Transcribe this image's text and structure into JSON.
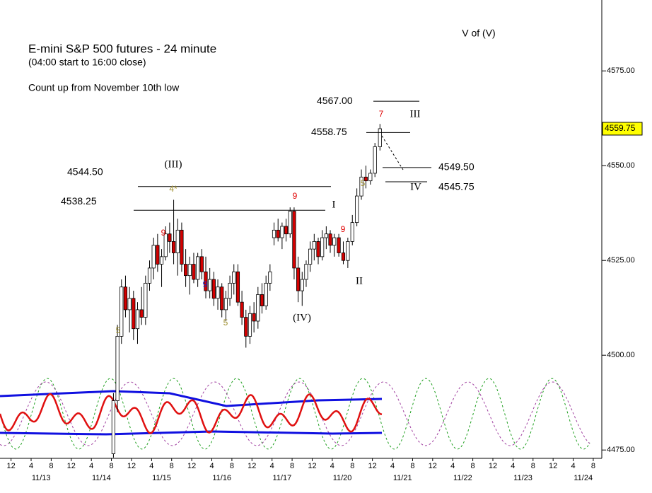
{
  "chart_data": {
    "type": "candlestick",
    "title": "E-mini S&P 500 futures - 24 minute",
    "subtitle": "(04:00 start to 16:00 close)",
    "note": "Count up from November 10th low",
    "up_color": "#ffffff",
    "down_color": "#d40000",
    "x": [
      16.4,
      17.2,
      18.0,
      18.8,
      19.6,
      20.4,
      21.2,
      22.0,
      22.8,
      23.6,
      24.4,
      25.2,
      26.0,
      26.8,
      27.6,
      28.4,
      29.2,
      30.0,
      30.8,
      31.6,
      32.4,
      33.2,
      34.0,
      34.8,
      35.6,
      36.4,
      37.2,
      38.0,
      38.8,
      39.6,
      40.4,
      41.2,
      42.0,
      42.8,
      43.6,
      44.4,
      45.2,
      46.0,
      46.8,
      47.6,
      48.4,
      49.2,
      50.0,
      50.8,
      51.6,
      52.4,
      53.2,
      54.0,
      54.8,
      55.6,
      56.4,
      57.2,
      58.0,
      58.8,
      59.6,
      60.4,
      61.3,
      62.2,
      63.1,
      64.0,
      64.9,
      65.8,
      66.7,
      67.6,
      68.5,
      69.5
    ],
    "open": [
      4474,
      4488,
      4505,
      4518,
      4512,
      4515,
      4507,
      4512,
      4510,
      4519,
      4523,
      4529,
      4524,
      4526,
      4532,
      4530,
      4527,
      4533,
      4524,
      4521,
      4524,
      4520,
      4526,
      4522,
      4517,
      4520,
      4515,
      4518,
      4512,
      4515,
      4519,
      4522,
      4514,
      4510,
      4505,
      4511,
      4509,
      4516,
      4513,
      4519,
      4531,
      4533,
      4531,
      4534,
      4532,
      4538,
      4523,
      4517,
      4520,
      4524,
      4528,
      4530,
      4526,
      4531,
      4532,
      4529,
      4531,
      4527,
      4525,
      4530,
      4535,
      4542,
      4547,
      4546,
      4548,
      4555
    ],
    "high": [
      4490,
      4508,
      4520,
      4521,
      4518,
      4517,
      4514,
      4518,
      4521,
      4525,
      4531,
      4532,
      4528,
      4534,
      4535,
      4541,
      4536,
      4535,
      4528,
      4526,
      4527,
      4527,
      4528,
      4526,
      4523,
      4522,
      4520,
      4519,
      4517,
      4521,
      4524,
      4524,
      4517,
      4512,
      4513,
      4514,
      4518,
      4519,
      4521,
      4524,
      4535,
      4536,
      4535,
      4536,
      4539,
      4539,
      4526,
      4522,
      4525,
      4530,
      4532,
      4531,
      4533,
      4534,
      4533,
      4532,
      4532,
      4530,
      4531,
      4537,
      4544,
      4549,
      4550,
      4549,
      4556,
      4561
    ],
    "low": [
      4473,
      4485,
      4503,
      4510,
      4506,
      4504,
      4503,
      4508,
      4508,
      4517,
      4520,
      4522,
      4518,
      4525,
      4527,
      4524,
      4521,
      4522,
      4518,
      4516,
      4519,
      4518,
      4520,
      4515,
      4515,
      4513,
      4512,
      4510,
      4509,
      4513,
      4516,
      4513,
      4508,
      4502,
      4503,
      4506,
      4507,
      4511,
      4512,
      4517,
      4529,
      4530,
      4528,
      4530,
      4531,
      4520,
      4514,
      4513,
      4518,
      4522,
      4525,
      4524,
      4525,
      4528,
      4527,
      4526,
      4526,
      4524,
      4523,
      4529,
      4534,
      4541,
      4544,
      4545,
      4547,
      4554
    ],
    "close": [
      4488,
      4505,
      4518,
      4512,
      4515,
      4507,
      4512,
      4510,
      4519,
      4523,
      4529,
      4524,
      4526,
      4532,
      4530,
      4527,
      4533,
      4524,
      4521,
      4524,
      4520,
      4526,
      4522,
      4517,
      4520,
      4515,
      4518,
      4512,
      4515,
      4519,
      4522,
      4514,
      4510,
      4505,
      4511,
      4509,
      4516,
      4513,
      4519,
      4522,
      4533,
      4531,
      4534,
      4532,
      4538,
      4523,
      4517,
      4520,
      4524,
      4528,
      4530,
      4526,
      4531,
      4532,
      4529,
      4531,
      4527,
      4525,
      4530,
      4535,
      4542,
      4547,
      4546,
      4548,
      4555,
      4559.75
    ],
    "xlim": [
      -6.2,
      113.7
    ],
    "ylim": [
      4472.8,
      4593.7
    ],
    "yticks": [
      {
        "value": 4475,
        "label": "4475.00"
      },
      {
        "value": 4500,
        "label": "4500.00"
      },
      {
        "value": 4525,
        "label": "4525.00"
      },
      {
        "value": 4550,
        "label": "4550.00"
      },
      {
        "value": 4575,
        "label": "4575.00"
      }
    ],
    "xticks": [
      {
        "value": -4,
        "label": "12"
      },
      {
        "value": 0,
        "label": "4"
      },
      {
        "value": 4,
        "label": "8"
      },
      {
        "value": 8,
        "label": "12"
      },
      {
        "value": 12,
        "label": "4"
      },
      {
        "value": 16,
        "label": "8"
      },
      {
        "value": 20,
        "label": "12"
      },
      {
        "value": 24,
        "label": "4"
      },
      {
        "value": 28,
        "label": "8"
      },
      {
        "value": 32,
        "label": "12"
      },
      {
        "value": 36,
        "label": "4"
      },
      {
        "value": 40,
        "label": "8"
      },
      {
        "value": 44,
        "label": "12"
      },
      {
        "value": 48,
        "label": "4"
      },
      {
        "value": 52,
        "label": "8"
      },
      {
        "value": 56,
        "label": "12"
      },
      {
        "value": 60,
        "label": "4"
      },
      {
        "value": 64,
        "label": "8"
      },
      {
        "value": 68,
        "label": "12"
      },
      {
        "value": 72,
        "label": "4"
      },
      {
        "value": 76,
        "label": "8"
      },
      {
        "value": 80,
        "label": "12"
      },
      {
        "value": 84,
        "label": "4"
      },
      {
        "value": 88,
        "label": "8"
      },
      {
        "value": 92,
        "label": "12"
      },
      {
        "value": 96,
        "label": "4"
      },
      {
        "value": 100,
        "label": "8"
      },
      {
        "value": 104,
        "label": "12"
      },
      {
        "value": 108,
        "label": "4"
      },
      {
        "value": 112,
        "label": "8"
      }
    ],
    "date_labels": [
      {
        "value": 2,
        "label": "11/13"
      },
      {
        "value": 14,
        "label": "11/14"
      },
      {
        "value": 26,
        "label": "11/15"
      },
      {
        "value": 38,
        "label": "11/16"
      },
      {
        "value": 50,
        "label": "11/17"
      },
      {
        "value": 62,
        "label": "11/20"
      },
      {
        "value": 74,
        "label": "11/21"
      },
      {
        "value": 86,
        "label": "11/22"
      },
      {
        "value": 98,
        "label": "11/23"
      },
      {
        "value": 110,
        "label": "11/24"
      }
    ],
    "levels": [
      {
        "value": 4567.0,
        "label": "4567.00"
      },
      {
        "value": 4558.75,
        "label": "4558.75"
      },
      {
        "value": 4549.5,
        "label": "4549.50"
      },
      {
        "value": 4545.75,
        "label": "4545.75"
      },
      {
        "value": 4544.5,
        "label": "4544.50"
      },
      {
        "value": 4538.25,
        "label": "4538.25"
      }
    ],
    "last_price": {
      "value": 4559.75,
      "label": "4559.75"
    },
    "wave_labels": [
      "(III)",
      "I",
      "(IV)",
      "II",
      "III",
      "IV",
      "V of (V)"
    ],
    "counts": [
      {
        "text": "9",
        "color": "#e00000"
      },
      {
        "text": "9",
        "color": "#2020c0"
      },
      {
        "text": "5",
        "color": "#a09030"
      },
      {
        "text": "5",
        "color": "#a09030"
      },
      {
        "text": "9",
        "color": "#e00000"
      },
      {
        "text": "9",
        "color": "#e00000"
      },
      {
        "text": "5",
        "color": "#a09030"
      },
      {
        "text": "4*",
        "color": "#a09030"
      },
      {
        "text": "7",
        "color": "#e00000"
      }
    ]
  }
}
